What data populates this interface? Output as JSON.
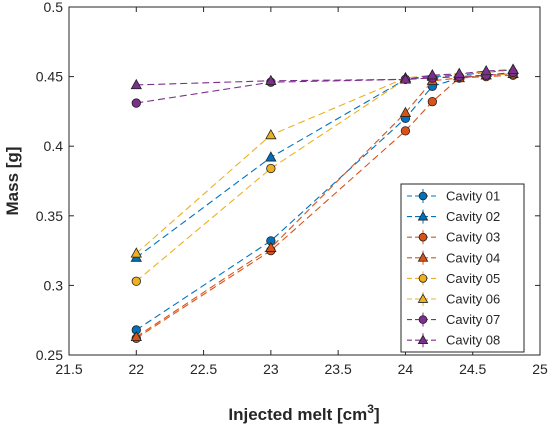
{
  "chart_data": {
    "type": "line",
    "xlabel": "Injected melt [cm",
    "xlabel_sup": "3",
    "xlabel_end": "]",
    "ylabel": "Mass [g]",
    "xlim": [
      21.5,
      25
    ],
    "ylim": [
      0.25,
      0.5
    ],
    "x_ticks": [
      "21.5",
      "22",
      "22.5",
      "23",
      "23.5",
      "24",
      "24.5",
      "25"
    ],
    "y_ticks": [
      "0.25",
      "0.3",
      "0.35",
      "0.4",
      "0.45",
      "0.5"
    ],
    "grid": false,
    "legend_position": "bottom-right",
    "series": [
      {
        "name": "Cavity 01",
        "color": "#0072BD",
        "marker": "circle",
        "x": [
          22,
          23,
          24,
          24.2,
          24.4,
          24.6,
          24.8
        ],
        "y": [
          0.268,
          0.332,
          0.42,
          0.443,
          0.449,
          0.451,
          0.452
        ]
      },
      {
        "name": "Cavity 02",
        "color": "#0072BD",
        "marker": "triangle",
        "x": [
          22,
          23,
          24,
          24.2,
          24.4,
          24.6,
          24.8
        ],
        "y": [
          0.32,
          0.392,
          0.448,
          0.45,
          0.451,
          0.453,
          0.455
        ]
      },
      {
        "name": "Cavity 03",
        "color": "#D95319",
        "marker": "circle",
        "x": [
          22,
          23,
          24,
          24.2,
          24.4,
          24.6,
          24.8
        ],
        "y": [
          0.262,
          0.325,
          0.411,
          0.432,
          0.449,
          0.45,
          0.451
        ]
      },
      {
        "name": "Cavity 04",
        "color": "#D95319",
        "marker": "triangle",
        "x": [
          22,
          23,
          24,
          24.2,
          24.4,
          24.6,
          24.8
        ],
        "y": [
          0.263,
          0.327,
          0.424,
          0.447,
          0.449,
          0.451,
          0.452
        ]
      },
      {
        "name": "Cavity 05",
        "color": "#EDB120",
        "marker": "circle",
        "x": [
          22,
          23,
          24,
          24.2,
          24.4,
          24.6,
          24.8
        ],
        "y": [
          0.303,
          0.384,
          0.448,
          0.449,
          0.45,
          0.451,
          0.452
        ]
      },
      {
        "name": "Cavity 06",
        "color": "#EDB120",
        "marker": "triangle",
        "x": [
          22,
          23,
          24,
          24.2,
          24.4,
          24.6,
          24.8
        ],
        "y": [
          0.323,
          0.408,
          0.449,
          0.451,
          0.452,
          0.453,
          0.455
        ]
      },
      {
        "name": "Cavity 07",
        "color": "#7E2F8E",
        "marker": "circle",
        "x": [
          22,
          23,
          24,
          24.2,
          24.4,
          24.6,
          24.8
        ],
        "y": [
          0.431,
          0.446,
          0.448,
          0.449,
          0.45,
          0.451,
          0.453
        ]
      },
      {
        "name": "Cavity 08",
        "color": "#7E2F8E",
        "marker": "triangle",
        "x": [
          22,
          23,
          24,
          24.2,
          24.4,
          24.6,
          24.8
        ],
        "y": [
          0.444,
          0.447,
          0.448,
          0.451,
          0.452,
          0.454,
          0.455
        ]
      }
    ]
  }
}
